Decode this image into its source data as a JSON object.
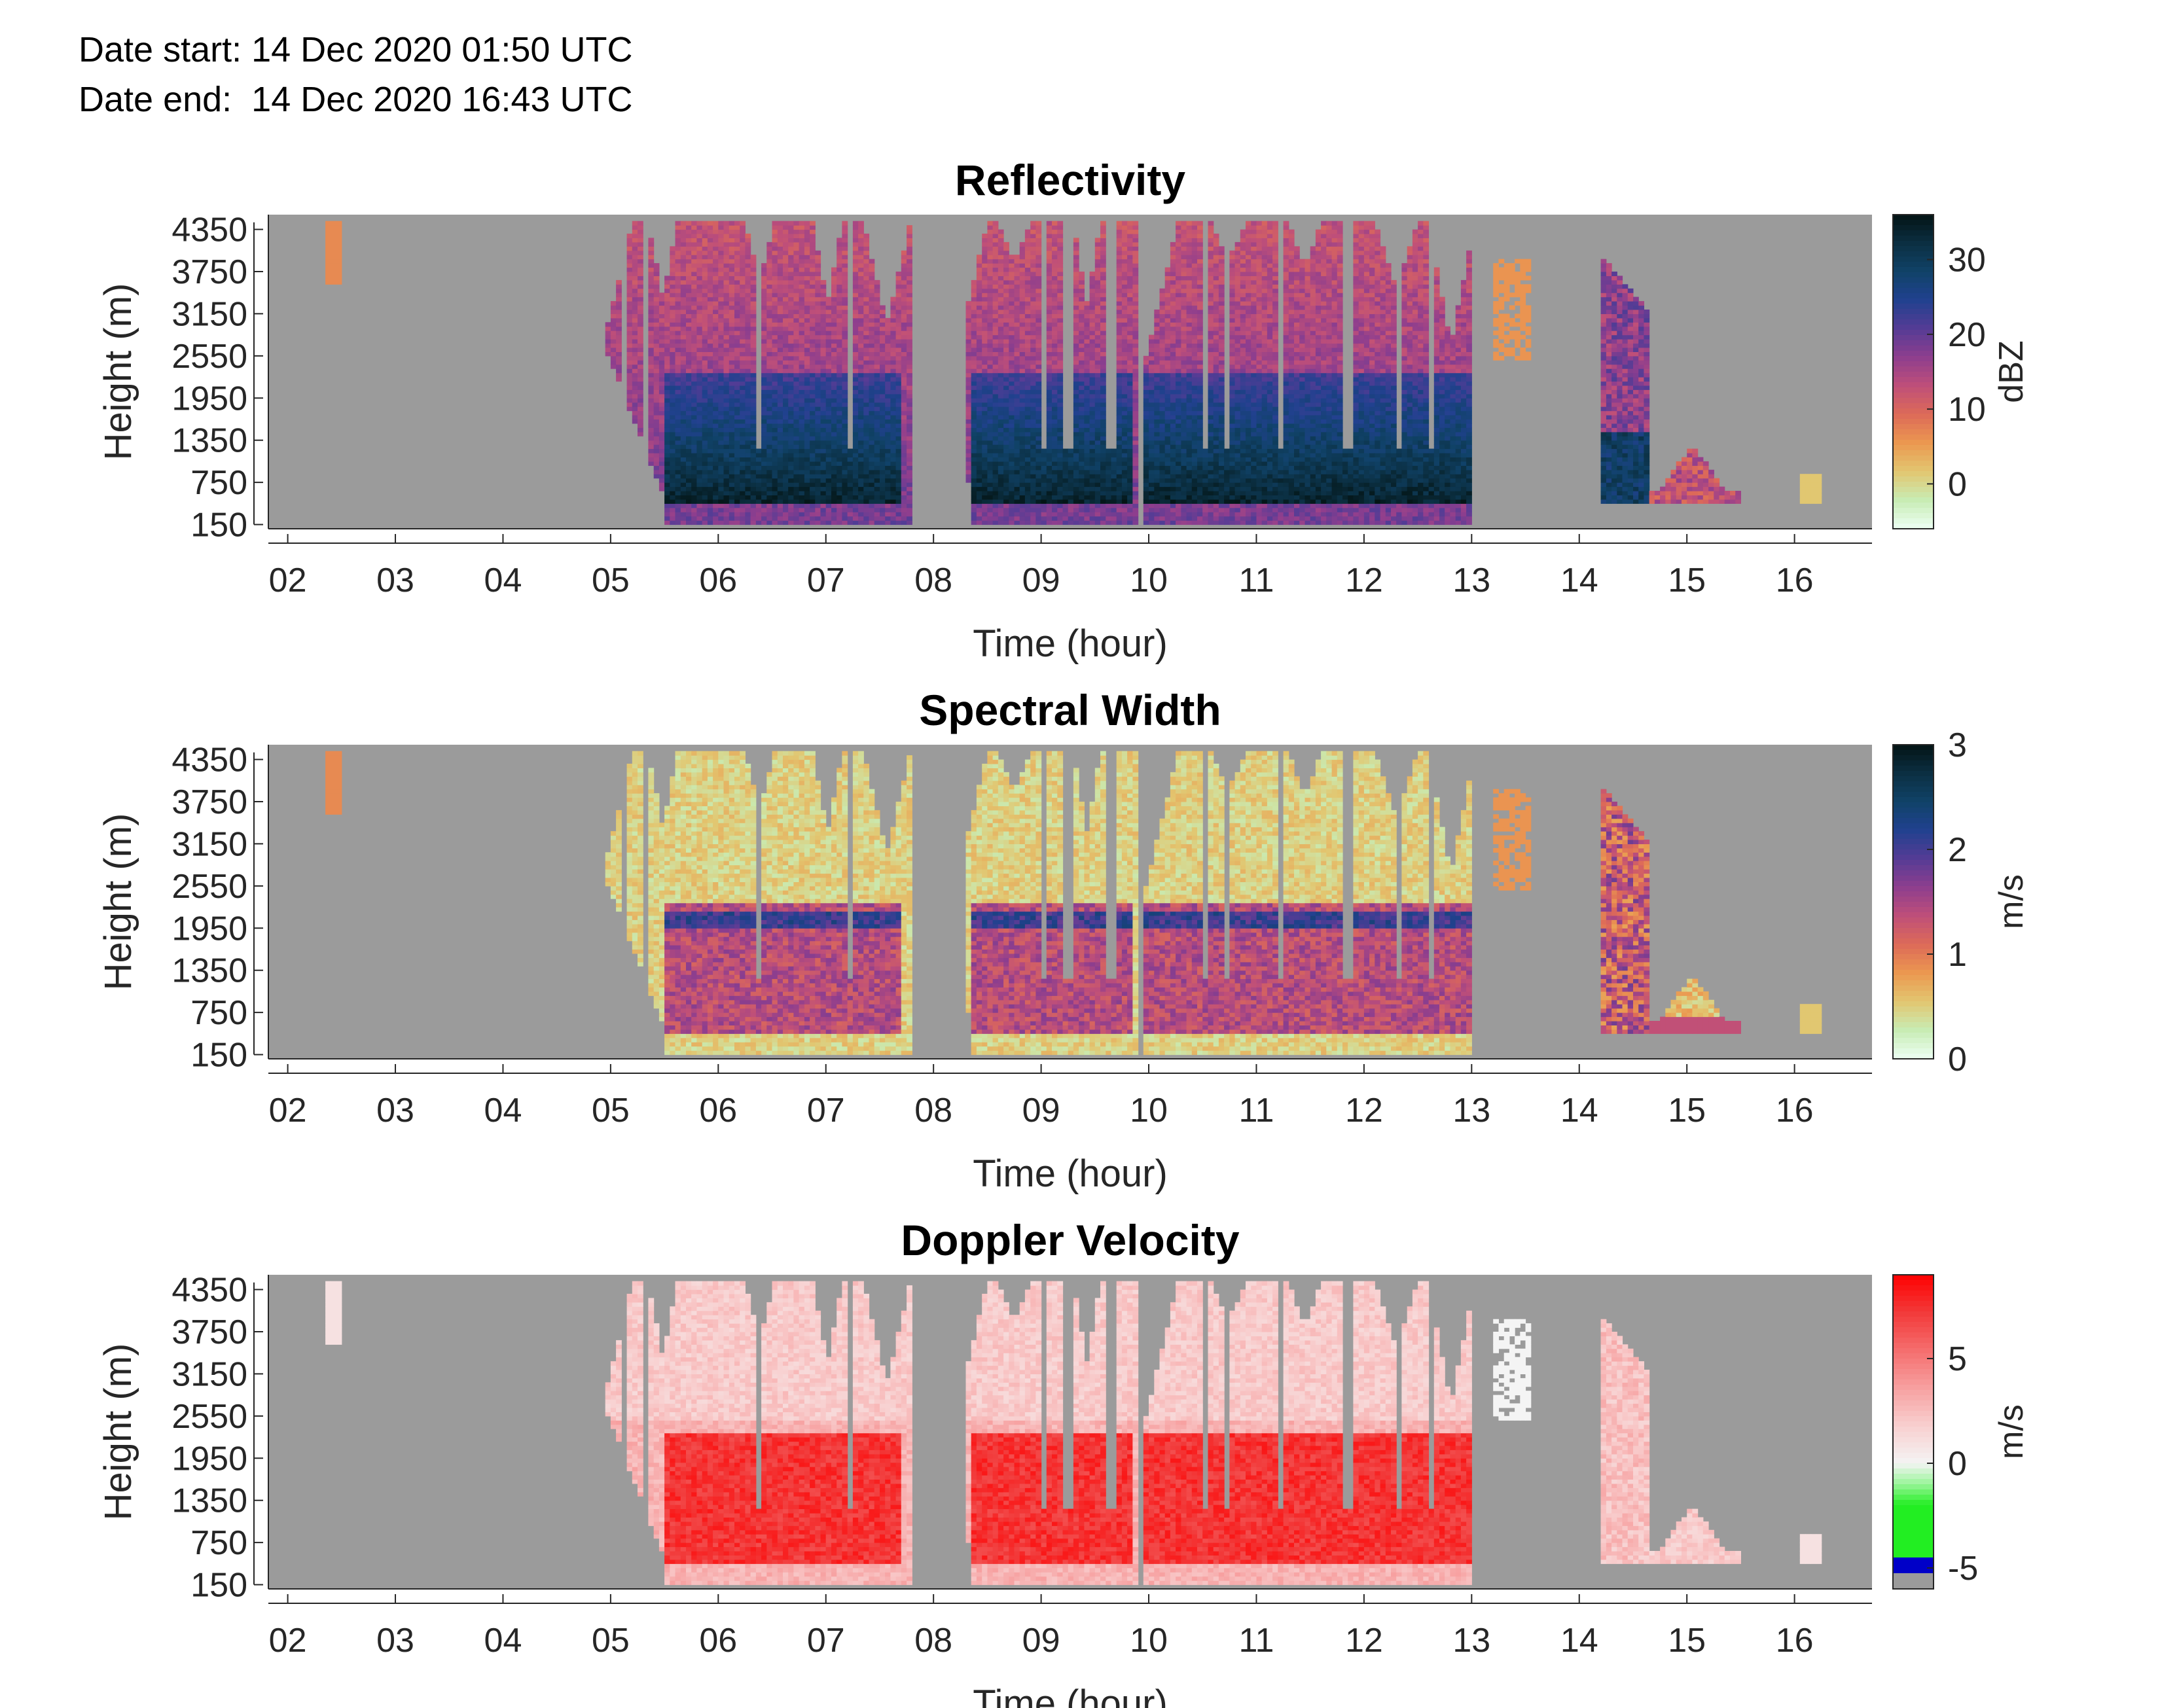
{
  "header": {
    "date_start": "Date start: 14 Dec 2020 01:50 UTC",
    "date_end": "Date end:  14 Dec 2020 16:43 UTC"
  },
  "chart_data": [
    {
      "type": "heatmap",
      "title": "Reflectivity",
      "xlabel": "Time (hour)",
      "ylabel": "Height (m)",
      "xlim": [
        1.82,
        16.72
      ],
      "ylim": [
        90,
        4560
      ],
      "x_ticks": [
        "02",
        "03",
        "04",
        "05",
        "06",
        "07",
        "08",
        "09",
        "10",
        "11",
        "12",
        "13",
        "14",
        "15",
        "16"
      ],
      "y_ticks": [
        "150",
        "750",
        "1350",
        "1950",
        "2550",
        "3150",
        "3750",
        "4350"
      ],
      "colorbar": {
        "label": "dBZ",
        "range": [
          -6,
          36
        ],
        "ticks": [
          "0",
          "10",
          "20",
          "30"
        ],
        "colors": [
          "#ecfff3",
          "#c8ecb4",
          "#e2c670",
          "#eb9850",
          "#dd6a58",
          "#bf4f79",
          "#8e3e8e",
          "#553c95",
          "#21418f",
          "#104268",
          "#0b2f42",
          "#031414"
        ]
      },
      "value_notes": "Strong echo (about 20-35 dBZ) below ~2300 m from 05:30-07:45, 08:20-09:55 and 09:55-12:58; weaker echo (5-20 dBZ) aloft; isolated cells near 02:30, 14:20-15:30 and 16:05"
    },
    {
      "type": "heatmap",
      "title": "Spectral Width",
      "xlabel": "Time (hour)",
      "ylabel": "Height (m)",
      "xlim": [
        1.82,
        16.72
      ],
      "ylim": [
        90,
        4560
      ],
      "x_ticks": [
        "02",
        "03",
        "04",
        "05",
        "06",
        "07",
        "08",
        "09",
        "10",
        "11",
        "12",
        "13",
        "14",
        "15",
        "16"
      ],
      "y_ticks": [
        "150",
        "750",
        "1350",
        "1950",
        "2550",
        "3150",
        "3750",
        "4350"
      ],
      "colorbar": {
        "label": "m/s",
        "range": [
          0,
          3
        ],
        "ticks": [
          "0",
          "1",
          "2",
          "3"
        ],
        "colors": [
          "#ecfff3",
          "#c8ecb4",
          "#e2c670",
          "#eb9850",
          "#dd6a58",
          "#bf4f79",
          "#8e3e8e",
          "#553c95",
          "#21418f",
          "#104268",
          "#0b2f42",
          "#031414"
        ]
      },
      "value_notes": "Narrow widths (about 0.2-0.5 m/s) aloft, broader widths (about 1-1.8 m/s) below ~2300 m"
    },
    {
      "type": "heatmap",
      "title": "Doppler Velocity",
      "xlabel": "Time (hour)",
      "ylabel": "Height (m)",
      "xlim": [
        1.82,
        16.72
      ],
      "ylim": [
        90,
        4560
      ],
      "x_ticks": [
        "02",
        "03",
        "04",
        "05",
        "06",
        "07",
        "08",
        "09",
        "10",
        "11",
        "12",
        "13",
        "14",
        "15",
        "16"
      ],
      "y_ticks": [
        "150",
        "750",
        "1350",
        "1950",
        "2550",
        "3150",
        "3750",
        "4350"
      ],
      "colorbar": {
        "label": "m/s",
        "range": [
          -6,
          9
        ],
        "ticks": [
          "-5",
          "0",
          "5"
        ],
        "colors": [
          "#9b9b9b",
          "#0000c8",
          "#22ee22",
          "#99f599",
          "#f4f4f4",
          "#f8cfcf",
          "#f7a0a0",
          "#f56d6d",
          "#f23a3a",
          "#ff0000"
        ]
      },
      "value_notes": "Positive (downward) velocities: about 1-3 m/s aloft, about 6-9 m/s below ~2000 m"
    }
  ]
}
